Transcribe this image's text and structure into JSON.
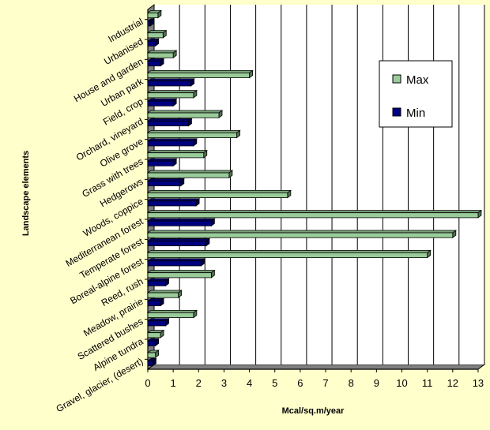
{
  "chart_data": {
    "type": "bar",
    "orientation": "horizontal",
    "style": "3d",
    "categories": [
      "Industrial",
      "Urbanised",
      "House and garden",
      "Urban park",
      "Field, crop",
      "Orchard, vineyard",
      "Olive grove",
      "Grass with trees",
      "Hedgerows",
      "Woods, coppice",
      "Mediterranean forest",
      "Temperate forest",
      "Boreal-alpine forest",
      "Reed, rush",
      "Meadow, prairie",
      "Scattered bushes",
      "Alpine tundra",
      "Gravel, glacier, (desert)"
    ],
    "series": [
      {
        "name": "Max",
        "color": "#99cc99",
        "values": [
          0.4,
          0.6,
          1.0,
          4.0,
          1.8,
          2.8,
          3.5,
          2.2,
          3.2,
          5.5,
          13.0,
          12.0,
          11.0,
          2.5,
          1.2,
          1.8,
          0.5,
          0.3
        ]
      },
      {
        "name": "Min",
        "color": "#000080",
        "values": [
          0.1,
          0.3,
          0.5,
          1.7,
          1.0,
          1.6,
          1.8,
          1.0,
          1.3,
          1.9,
          2.5,
          2.3,
          2.1,
          0.7,
          0.5,
          0.7,
          0.3,
          0.2
        ]
      }
    ],
    "xlabel": "Mcal/sq.m/year",
    "ylabel": "Landscape elements",
    "xlim": [
      0,
      13
    ],
    "xticks": [
      "0",
      "1",
      "2",
      "3",
      "4",
      "5",
      "6",
      "7",
      "8",
      "9",
      "10",
      "11",
      "12",
      "13"
    ],
    "grid": "vertical",
    "legend_position": "right"
  }
}
